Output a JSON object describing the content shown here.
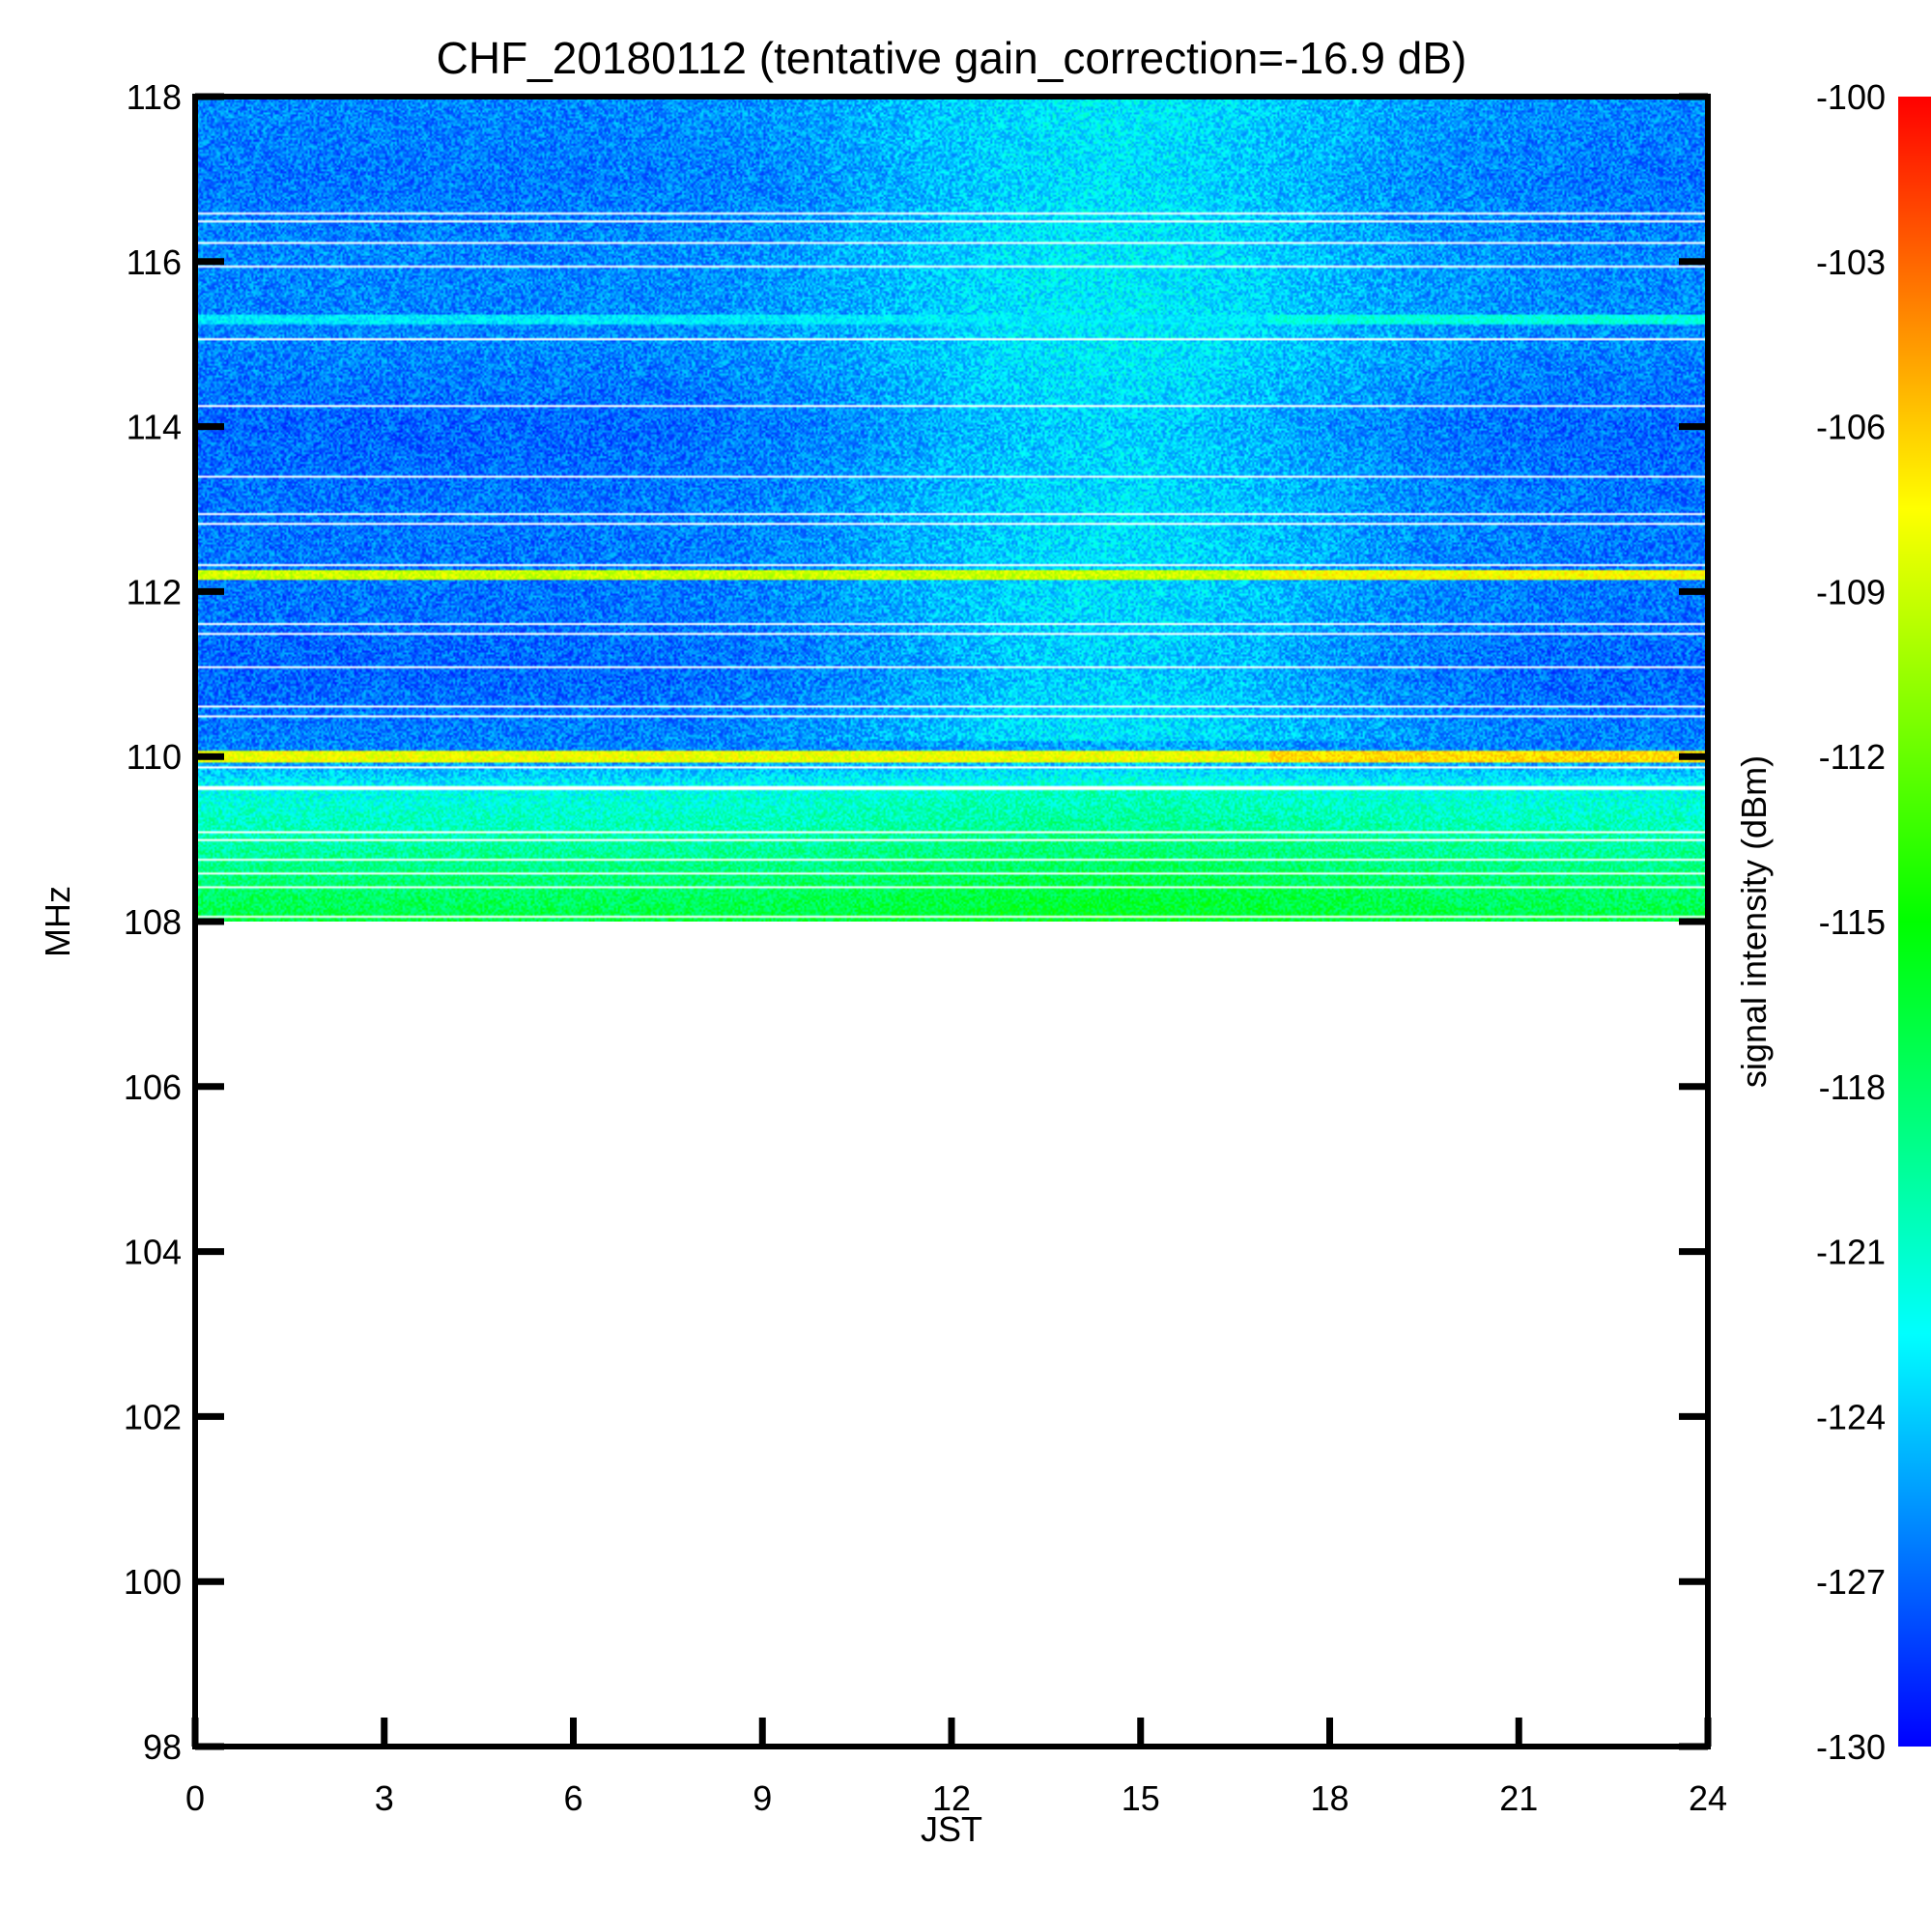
{
  "chart_data": {
    "type": "heatmap",
    "title": "CHF_20180112 (tentative gain_correction=-16.9 dB)",
    "xlabel": "JST",
    "ylabel": "MHz",
    "xlim": [
      0,
      24
    ],
    "ylim": [
      98,
      118
    ],
    "x_ticks": [
      "0",
      "3",
      "6",
      "9",
      "12",
      "15",
      "18",
      "21",
      "24"
    ],
    "y_ticks": [
      "98",
      "100",
      "102",
      "104",
      "106",
      "108",
      "110",
      "112",
      "114",
      "116",
      "118"
    ],
    "data_frequency_range_mhz": [
      108,
      118
    ],
    "colorbar": {
      "label": "signal intensity (dBm)",
      "range": [
        -130,
        -100
      ],
      "ticks": [
        "-100",
        "-103",
        "-106",
        "-109",
        "-112",
        "-115",
        "-118",
        "-121",
        "-124",
        "-127",
        "-130"
      ],
      "colors": [
        "#0000ff",
        "#00ffff",
        "#00ff00",
        "#ffff00",
        "#ff0000"
      ]
    },
    "background_levels": {
      "frequencies_mhz": [
        108,
        109,
        109.6,
        110,
        111,
        112,
        113,
        114,
        115,
        116,
        117,
        118
      ],
      "dbm": [
        -117,
        -120,
        -122,
        -126,
        -127,
        -126.5,
        -126.5,
        -127,
        -126,
        -126,
        -126.5,
        -126
      ]
    },
    "strong_lines": [
      {
        "freq_mhz": 110.0,
        "dbm": -108
      },
      {
        "freq_mhz": 112.2,
        "dbm": -109
      },
      {
        "freq_mhz": 115.3,
        "dbm": -123
      }
    ],
    "enhanced_period_jst": [
      10,
      19
    ]
  }
}
